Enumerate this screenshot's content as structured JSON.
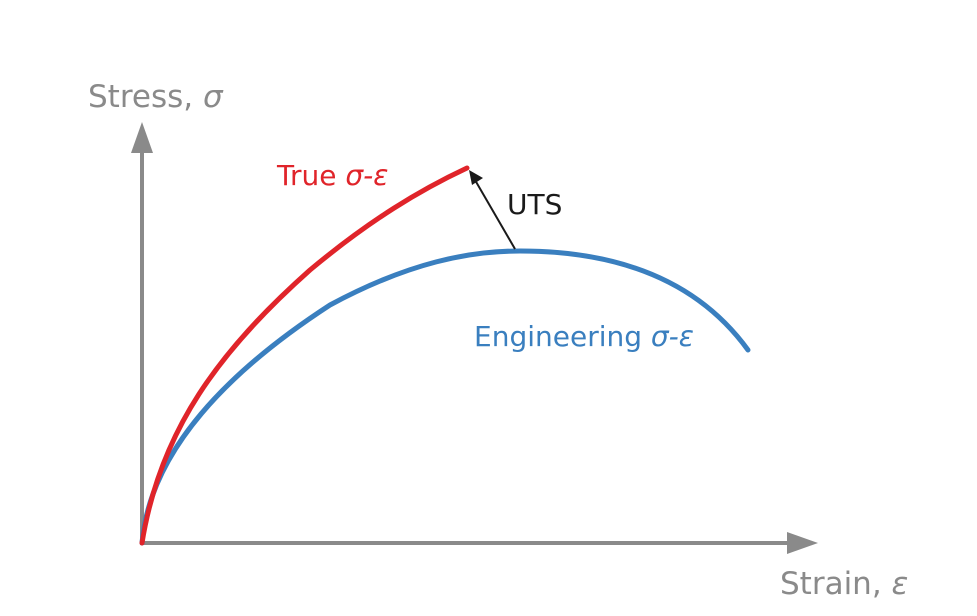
{
  "diagram": {
    "y_axis_label": {
      "text": "Stress, ",
      "symbol": "σ"
    },
    "x_axis_label": {
      "text": "Strain, ",
      "symbol": "ε"
    },
    "true_curve_label": {
      "text": "True ",
      "symbol": "σ-ε"
    },
    "engineering_curve_label": {
      "text": "Engineering ",
      "symbol": "σ-ε"
    },
    "uts_label": "UTS",
    "colors": {
      "axis": "#8a8a8a",
      "true_curve": "#e0242a",
      "engineering_curve": "#3a7fbf",
      "uts_arrow": "#1a1a1a"
    }
  }
}
